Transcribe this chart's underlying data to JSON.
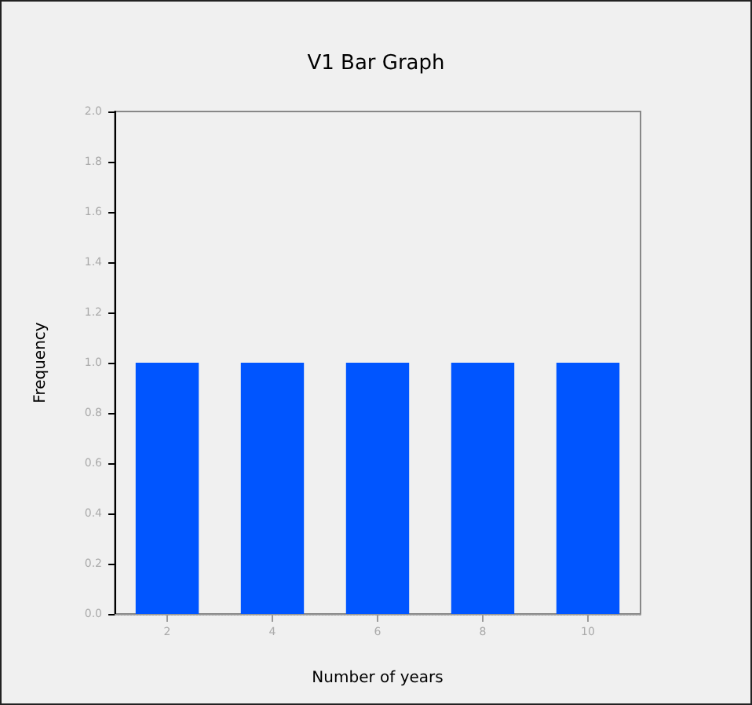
{
  "chart_data": {
    "type": "bar",
    "title": "V1 Bar Graph",
    "xlabel": "Number of years",
    "ylabel": "Frequency",
    "categories": [
      "2",
      "4",
      "6",
      "8",
      "10"
    ],
    "values": [
      1,
      1,
      1,
      1,
      1
    ],
    "color": "#0055ff",
    "ylim": [
      0,
      2
    ],
    "yticks": [
      {
        "value": 0,
        "label": "0.0"
      },
      {
        "value": 0.2,
        "label": "0.2"
      },
      {
        "value": 0.4,
        "label": "0.4"
      },
      {
        "value": 0.6,
        "label": "0.6"
      },
      {
        "value": 0.8,
        "label": "0.8"
      },
      {
        "value": 1,
        "label": "1.0"
      },
      {
        "value": 1.2,
        "label": "1.2"
      },
      {
        "value": 1.4,
        "label": "1.4"
      },
      {
        "value": 1.6,
        "label": "1.6"
      },
      {
        "value": 1.8,
        "label": "1.8"
      },
      {
        "value": 2,
        "label": "2.0"
      }
    ],
    "grid": false
  }
}
